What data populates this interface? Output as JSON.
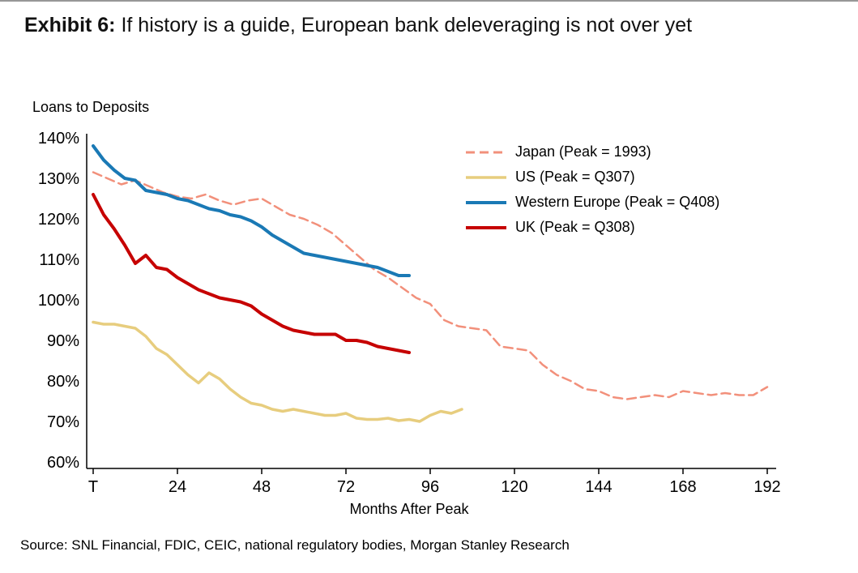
{
  "page": {
    "title_bold": "Exhibit 6:",
    "title_rest": "  If history is a guide, European bank deleveraging is not over yet",
    "source": "Source: SNL Financial, FDIC, CEIC, national regulatory bodies, Morgan Stanley Research"
  },
  "chart_data": {
    "type": "line",
    "title": "Loans to Deposits",
    "ylabel": "Loans to Deposits",
    "xlabel": "Months After Peak",
    "units": "%",
    "grid": false,
    "legend_position": "upper-right-inside",
    "xlim": [
      0,
      192
    ],
    "ylim": [
      60,
      140
    ],
    "x_ticks": [
      "T",
      "24",
      "48",
      "72",
      "96",
      "120",
      "144",
      "168",
      "192"
    ],
    "x_tick_values": [
      0,
      24,
      48,
      72,
      96,
      120,
      144,
      168,
      192
    ],
    "y_ticks": [
      "140%",
      "130%",
      "120%",
      "110%",
      "100%",
      "90%",
      "80%",
      "70%",
      "60%"
    ],
    "y_tick_values": [
      140,
      130,
      120,
      110,
      100,
      90,
      80,
      70,
      60
    ],
    "series": [
      {
        "id": "japan",
        "name": "Japan (Peak = 1993)",
        "color": "#f2907b",
        "style": "dashed",
        "width": 2.5,
        "x": [
          0,
          4,
          8,
          12,
          16,
          20,
          24,
          28,
          32,
          36,
          40,
          44,
          48,
          52,
          56,
          60,
          64,
          68,
          72,
          76,
          80,
          84,
          88,
          92,
          96,
          100,
          104,
          108,
          112,
          116,
          120,
          124,
          128,
          132,
          136,
          140,
          144,
          148,
          152,
          156,
          160,
          164,
          168,
          172,
          176,
          180,
          184,
          188,
          192
        ],
        "values": [
          131.5,
          130,
          128.5,
          129.5,
          128,
          126.5,
          125.5,
          125,
          126,
          124.5,
          123.5,
          124.5,
          125,
          123,
          121,
          120,
          118.5,
          116.5,
          113.5,
          110.5,
          107.5,
          105.5,
          103,
          100.5,
          99,
          95,
          93.5,
          93,
          92.5,
          88.5,
          88,
          87.5,
          84,
          81.5,
          80,
          78,
          77.5,
          76,
          75.5,
          76,
          76.5,
          76,
          77.5,
          77,
          76.5,
          77,
          76.5,
          76.5,
          78.5
        ]
      },
      {
        "id": "us",
        "name": "US (Peak = Q307)",
        "color": "#e7cd7e",
        "style": "solid",
        "width": 3.5,
        "x": [
          0,
          3,
          6,
          9,
          12,
          15,
          18,
          21,
          24,
          27,
          30,
          33,
          36,
          39,
          42,
          45,
          48,
          51,
          54,
          57,
          60,
          63,
          66,
          69,
          72,
          75,
          78,
          81,
          84,
          87,
          90,
          93,
          96,
          99,
          102,
          105
        ],
        "values": [
          94.5,
          94,
          94,
          93.5,
          93,
          91,
          88,
          86.5,
          84,
          81.5,
          79.5,
          82,
          80.5,
          78,
          76,
          74.5,
          74,
          73,
          72.5,
          73,
          72.5,
          72,
          71.5,
          71.5,
          72,
          70.8,
          70.5,
          70.5,
          70.8,
          70.2,
          70.5,
          70,
          71.5,
          72.5,
          72,
          73
        ]
      },
      {
        "id": "western-europe",
        "name": "Western Europe (Peak = Q408)",
        "color": "#1a79b5",
        "style": "solid",
        "width": 4,
        "x": [
          0,
          3,
          6,
          9,
          12,
          15,
          18,
          21,
          24,
          27,
          30,
          33,
          36,
          39,
          42,
          45,
          48,
          51,
          54,
          57,
          60,
          63,
          66,
          69,
          72,
          75,
          78,
          81,
          84,
          87,
          90
        ],
        "values": [
          138,
          134.5,
          132,
          130,
          129.5,
          127,
          126.5,
          126,
          125,
          124.5,
          123.5,
          122.5,
          122,
          121,
          120.5,
          119.5,
          118,
          116,
          114.5,
          113,
          111.5,
          111,
          110.5,
          110,
          109.5,
          109,
          108.5,
          108,
          107,
          106,
          106
        ]
      },
      {
        "id": "uk",
        "name": "UK (Peak = Q308)",
        "color": "#c60000",
        "style": "solid",
        "width": 4,
        "x": [
          0,
          3,
          6,
          9,
          12,
          15,
          18,
          21,
          24,
          27,
          30,
          33,
          36,
          39,
          42,
          45,
          48,
          51,
          54,
          57,
          60,
          63,
          66,
          69,
          72,
          75,
          78,
          81,
          84,
          87,
          90
        ],
        "values": [
          126,
          121,
          117.5,
          113.5,
          109,
          111,
          108,
          107.5,
          105.5,
          104,
          102.5,
          101.5,
          100.5,
          100,
          99.5,
          98.5,
          96.5,
          95,
          93.5,
          92.5,
          92,
          91.5,
          91.5,
          91.5,
          90,
          90,
          89.5,
          88.5,
          88,
          87.5,
          87
        ]
      }
    ]
  }
}
